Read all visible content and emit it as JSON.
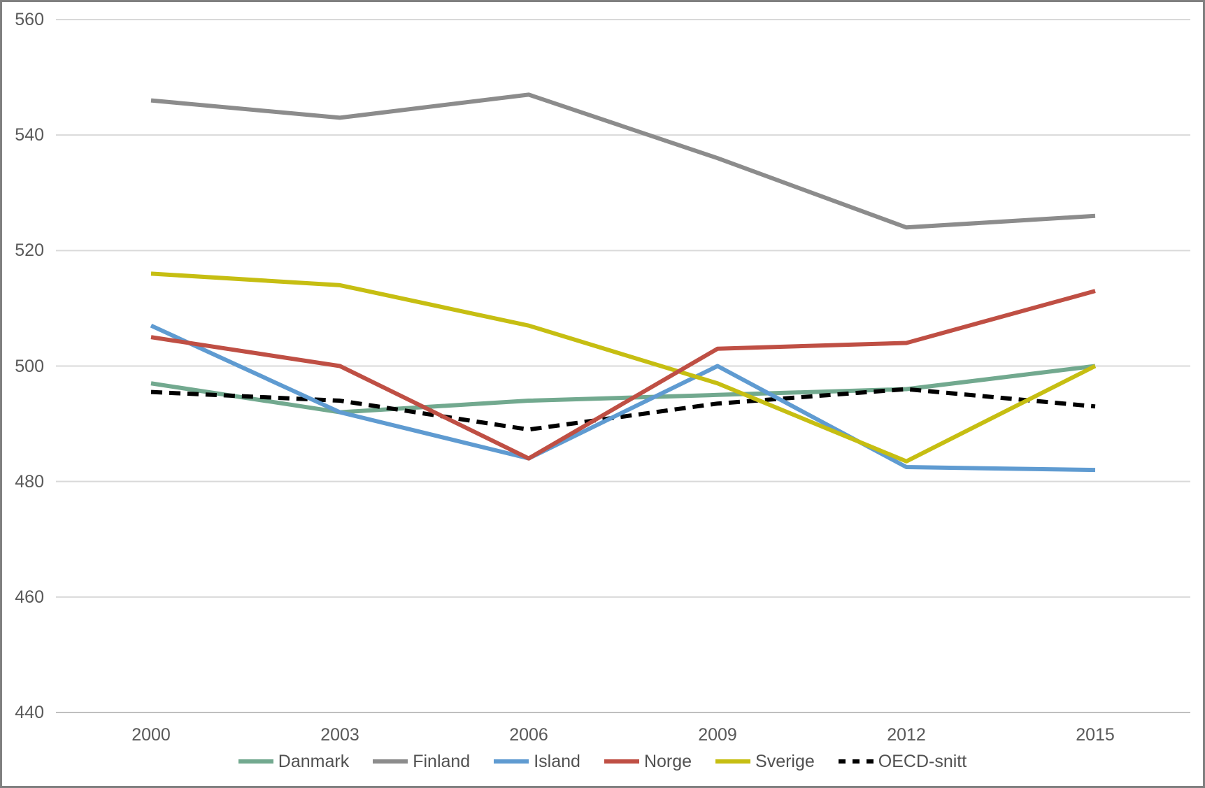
{
  "chart_data": {
    "type": "line",
    "title": "",
    "x_labels": [
      "2000",
      "2003",
      "2006",
      "2009",
      "2012",
      "2015"
    ],
    "y_ticks": [
      440,
      460,
      480,
      500,
      520,
      540,
      560
    ],
    "ylim": [
      440,
      560
    ],
    "grid": "horizontal",
    "legend_position": "bottom-center",
    "series": [
      {
        "name": "Danmark",
        "color": "#72A98F",
        "style": "solid",
        "values": [
          497,
          492,
          494,
          495,
          496,
          500
        ]
      },
      {
        "name": "Finland",
        "color": "#8C8C8C",
        "style": "solid",
        "values": [
          546,
          543,
          547,
          536,
          524,
          526
        ]
      },
      {
        "name": "Island",
        "color": "#5F9BD1",
        "style": "solid",
        "values": [
          507,
          492,
          484,
          500,
          482.5,
          482
        ]
      },
      {
        "name": "Norge",
        "color": "#BF4F44",
        "style": "solid",
        "values": [
          505,
          500,
          484,
          503,
          504,
          513
        ]
      },
      {
        "name": "Sverige",
        "color": "#C6BE12",
        "style": "solid",
        "values": [
          516,
          514,
          507,
          497,
          483.5,
          500
        ]
      },
      {
        "name": "OECD-snitt",
        "color": "#000000",
        "style": "dashed",
        "values": [
          495.5,
          494,
          489,
          493.5,
          496,
          493
        ]
      }
    ],
    "z_order": [
      "Danmark",
      "Finland",
      "OECD-snitt",
      "Island",
      "Sverige",
      "Norge"
    ],
    "colors": {
      "gridline": "#D9D9D9",
      "axis_line": "#BFBFBF",
      "axis_text": "#595959",
      "border": "#808080",
      "background": "#FFFFFF"
    }
  }
}
